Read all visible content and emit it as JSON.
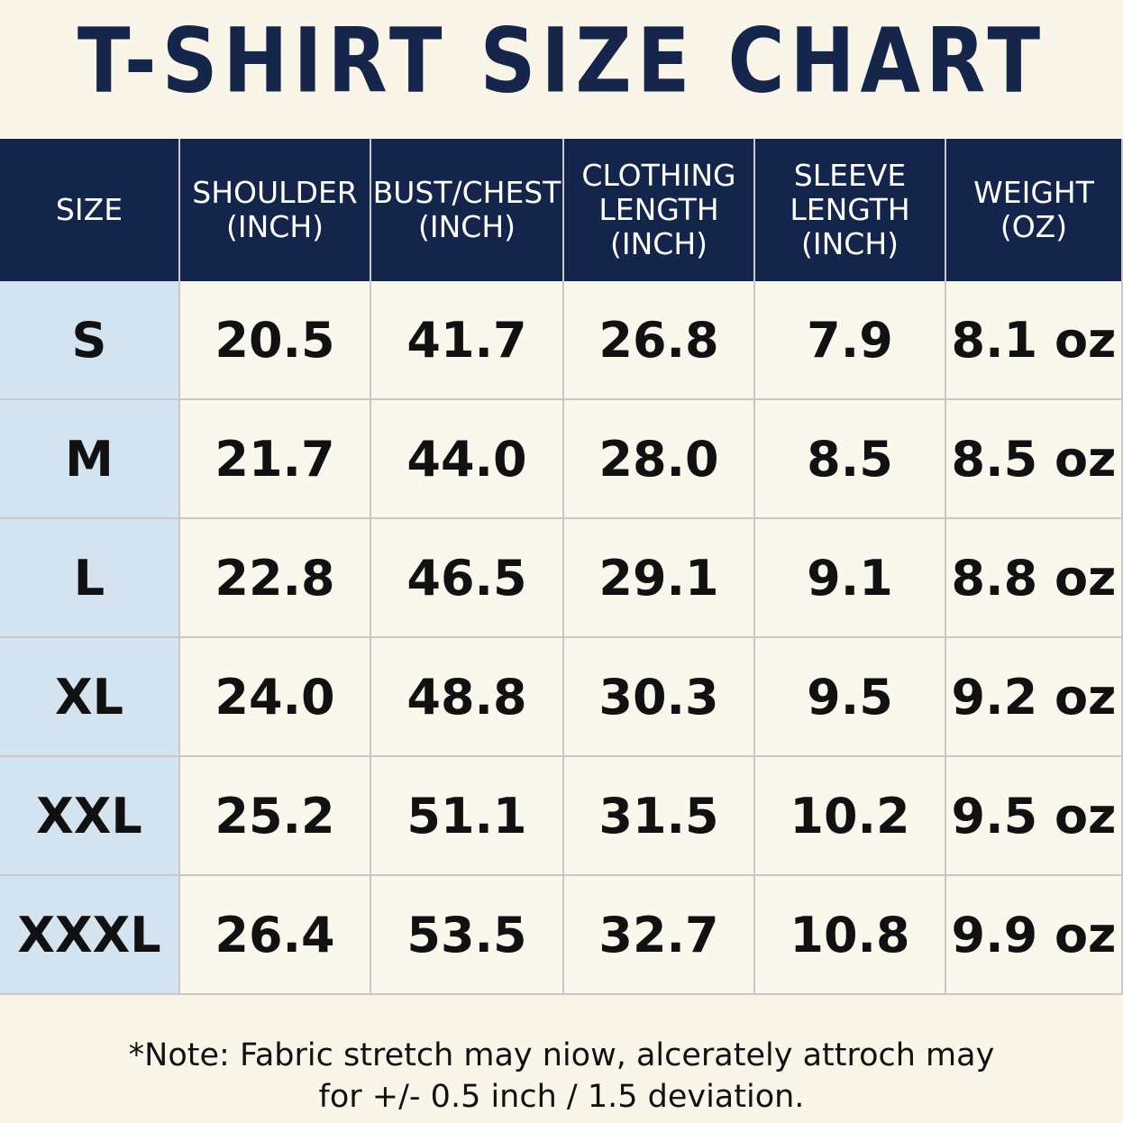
{
  "title": "T-SHIRT SIZE CHART",
  "table": {
    "headers": [
      [
        "SIZE"
      ],
      [
        "SHOULDER",
        "(INCH)"
      ],
      [
        "BUST/CHEST",
        "(INCH)"
      ],
      [
        "CLOTHING",
        "LENGTH",
        "(INCH)"
      ],
      [
        "SLEEVE",
        "LENGTH",
        "(INCH)"
      ],
      [
        "WEIGHT",
        "(OZ)"
      ]
    ],
    "rows": [
      [
        "S",
        "20.5",
        "41.7",
        "26.8",
        "7.9",
        "8.1 oz"
      ],
      [
        "M",
        "21.7",
        "44.0",
        "28.0",
        "8.5",
        "8.5 oz"
      ],
      [
        "L",
        "22.8",
        "46.5",
        "29.1",
        "9.1",
        "8.8 oz"
      ],
      [
        "XL",
        "24.0",
        "48.8",
        "30.3",
        "9.5",
        "9.2 oz"
      ],
      [
        "XXL",
        "25.2",
        "51.1",
        "31.5",
        "10.2",
        "9.5 oz"
      ],
      [
        "XXXL",
        "26.4",
        "53.5",
        "32.7",
        "10.8",
        "9.9 oz"
      ]
    ]
  },
  "note": [
    "*Note: Fabric stretch may niow, alcerately attroch may",
    "for +/- 0.5 inch / 1.5 deviation."
  ]
}
